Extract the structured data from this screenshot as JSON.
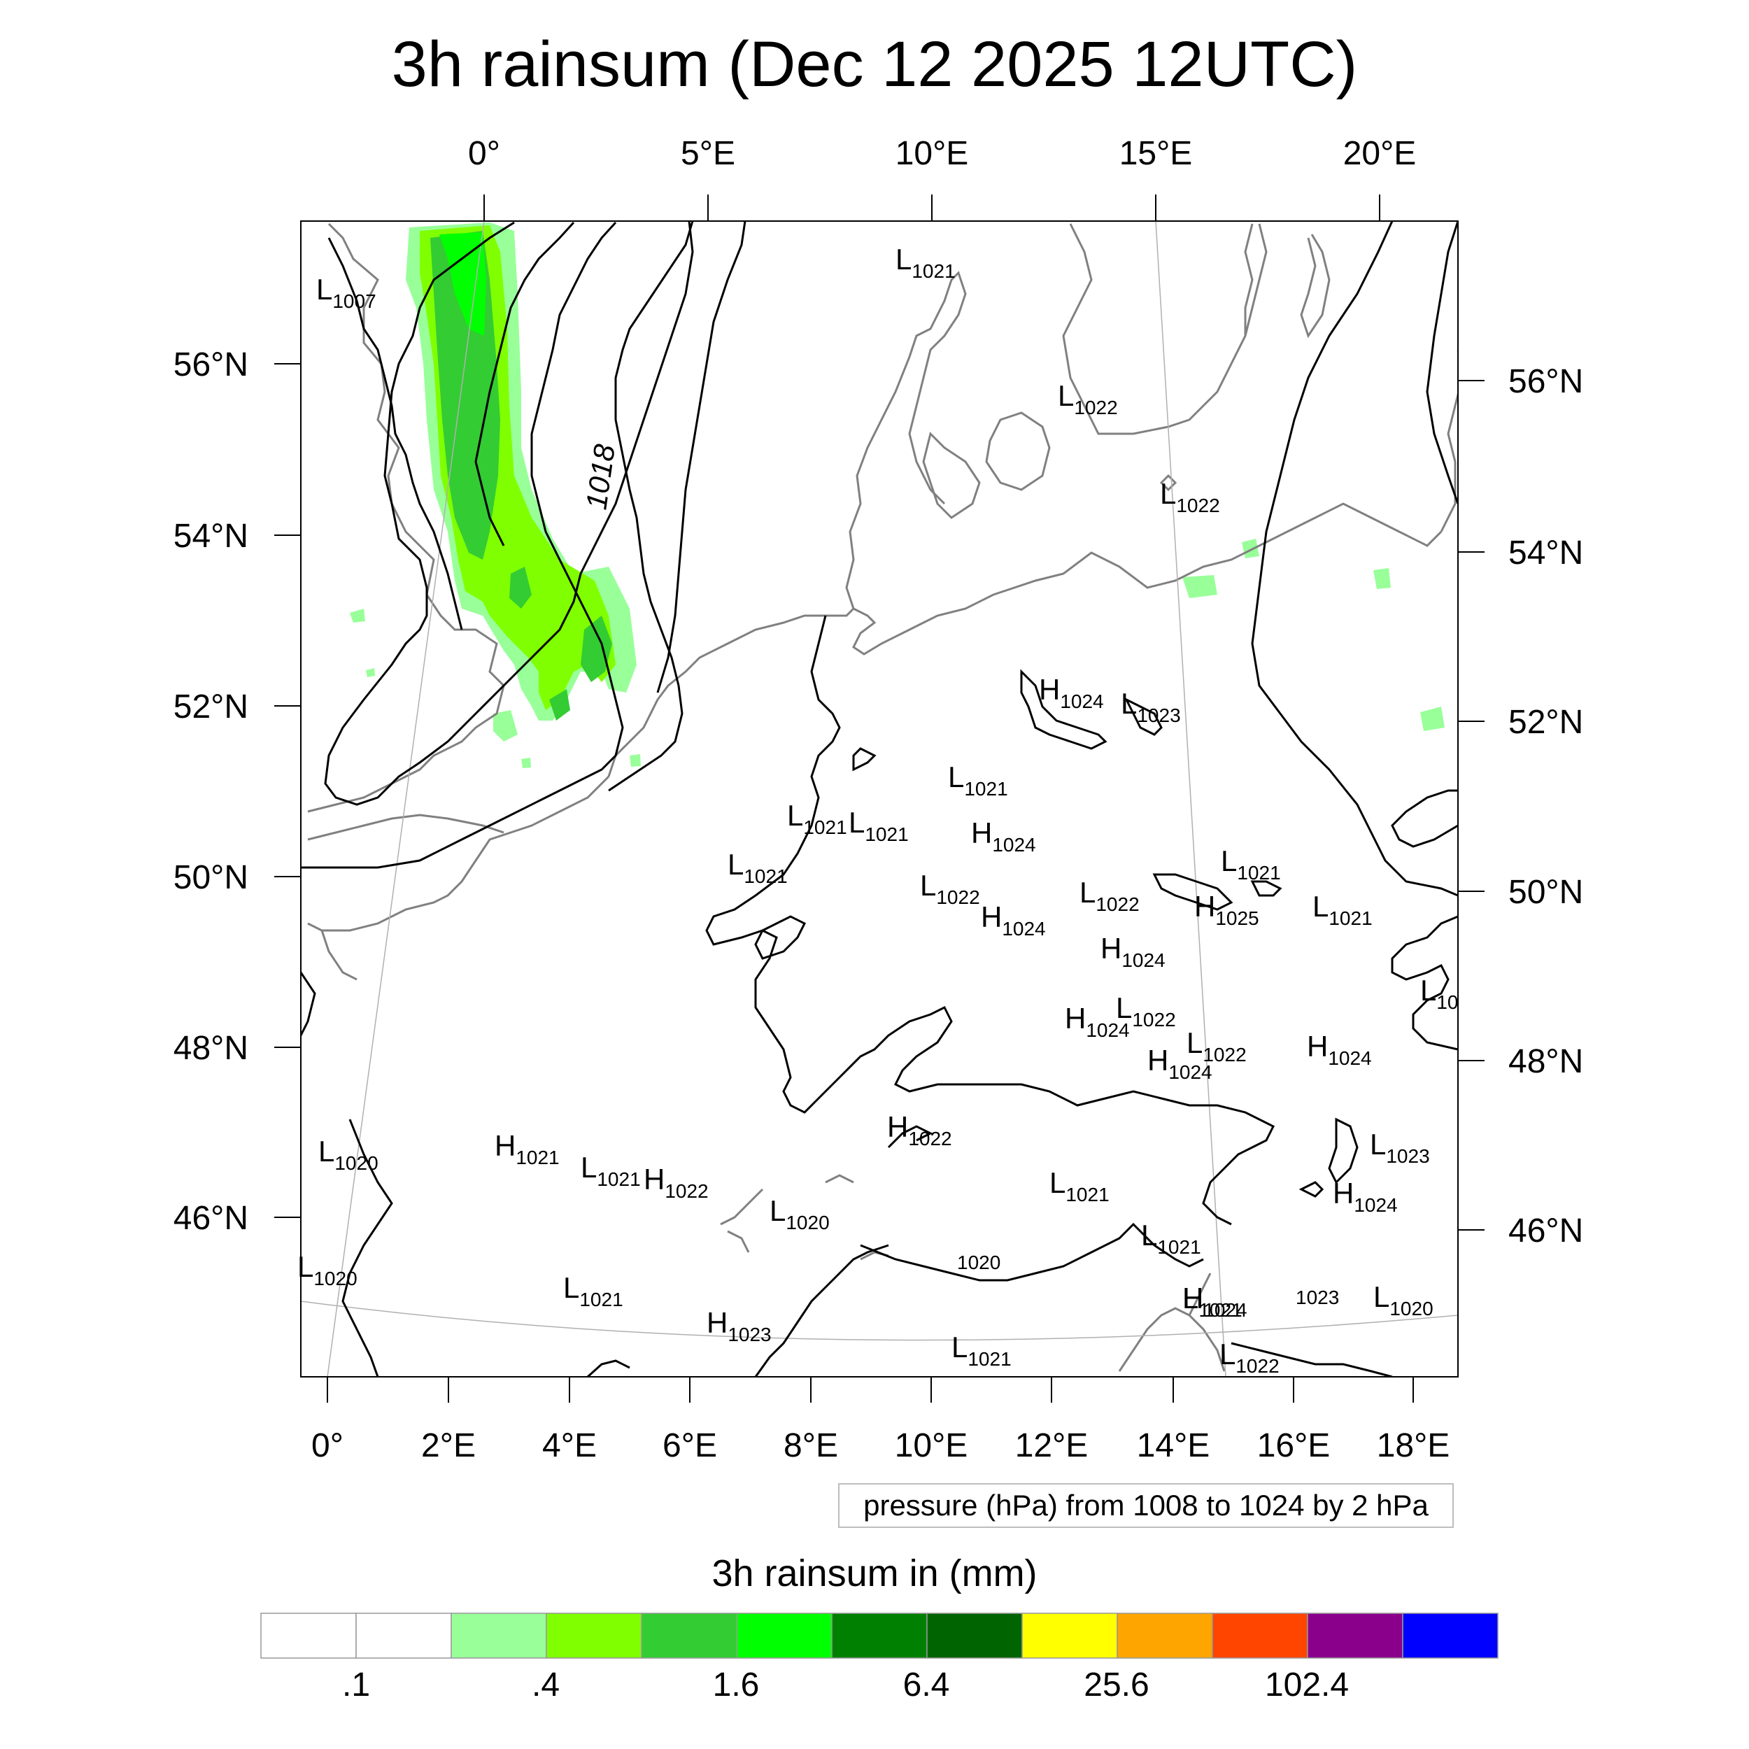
{
  "title": "3h rainsum (Dec 12 2025 12UTC)",
  "top_lon_labels": [
    "0°",
    "5°E",
    "10°E",
    "15°E",
    "20°E"
  ],
  "bottom_lon_labels": [
    "0°",
    "2°E",
    "4°E",
    "6°E",
    "8°E",
    "10°E",
    "12°E",
    "14°E",
    "16°E",
    "18°E"
  ],
  "left_lat_labels": [
    "56°N",
    "54°N",
    "52°N",
    "50°N",
    "48°N",
    "46°N"
  ],
  "right_lat_labels": [
    "56°N",
    "54°N",
    "52°N",
    "50°N",
    "48°N",
    "46°N"
  ],
  "contour_label": "1018",
  "pressure_centers": [
    {
      "type": "L",
      "value": "1007"
    },
    {
      "type": "L",
      "value": "1021"
    },
    {
      "type": "L",
      "value": "1022"
    },
    {
      "type": "L",
      "value": "1022"
    },
    {
      "type": "H",
      "value": "1024"
    },
    {
      "type": "L",
      "value": "1023"
    },
    {
      "type": "L",
      "value": "1021"
    },
    {
      "type": "L",
      "value": "1021"
    },
    {
      "type": "L",
      "value": "1021"
    },
    {
      "type": "H",
      "value": "1024"
    },
    {
      "type": "L",
      "value": "1021"
    },
    {
      "type": "L",
      "value": "1021"
    },
    {
      "type": "L",
      "value": "1022"
    },
    {
      "type": "H",
      "value": "1024"
    },
    {
      "type": "L",
      "value": "1022"
    },
    {
      "type": "H",
      "value": "1025"
    },
    {
      "type": "L",
      "value": "1021"
    },
    {
      "type": "H",
      "value": "1024"
    },
    {
      "type": "L",
      "value": "10"
    },
    {
      "type": "H",
      "value": "1024"
    },
    {
      "type": "L",
      "value": "1022"
    },
    {
      "type": "L",
      "value": "1022"
    },
    {
      "type": "H",
      "value": "1024"
    },
    {
      "type": "H",
      "value": "1024"
    },
    {
      "type": "L",
      "value": "1020"
    },
    {
      "type": "H",
      "value": "1021"
    },
    {
      "type": "L",
      "value": "1021"
    },
    {
      "type": "H",
      "value": "1022"
    },
    {
      "type": "H",
      "value": "1022"
    },
    {
      "type": "L",
      "value": "1023"
    },
    {
      "type": "L",
      "value": "1021"
    },
    {
      "type": "L",
      "value": "1020"
    },
    {
      "type": "H",
      "value": "1024"
    },
    {
      "type": "L",
      "value": "1021"
    },
    {
      "type": "",
      "value": "1020"
    },
    {
      "type": "L",
      "value": "1020"
    },
    {
      "type": "L",
      "value": "1021"
    },
    {
      "type": "L",
      "value": "1021"
    },
    {
      "type": "H",
      "value": "1024"
    },
    {
      "type": "",
      "value": "1023"
    },
    {
      "type": "L",
      "value": "1020"
    },
    {
      "type": "H",
      "value": "1023"
    },
    {
      "type": "L",
      "value": "1021"
    },
    {
      "type": "L",
      "value": "1022"
    }
  ],
  "contour_note": "pressure (hPa) from 1008 to 1024 by 2 hPa",
  "colorbar": {
    "title": "3h rainsum in (mm)",
    "colors": [
      "#ffffff",
      "#ffffff",
      "#99ff99",
      "#80ff00",
      "#33cc33",
      "#00ff00",
      "#008000",
      "#006400",
      "#ffff00",
      "#ffa500",
      "#ff4500",
      "#8b008b",
      "#0000ff"
    ],
    "labels": [
      ".1",
      ".4",
      "1.6",
      "6.4",
      "25.6",
      "102.4"
    ]
  },
  "colors": {
    "rain_light": "#99ff99",
    "rain_mid": "#80ff00",
    "rain_heavy": "#33cc33",
    "coast": "#808080",
    "isobar": "#000000"
  }
}
